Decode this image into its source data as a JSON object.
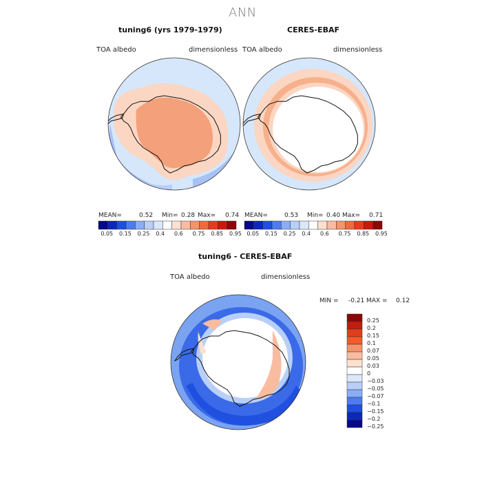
{
  "page_title": "ANN",
  "panels": [
    {
      "title": "tuning6 (yrs 1979-1979)",
      "variable": "TOA albedo",
      "units": "dimensionless",
      "mean_label": "MEAN=",
      "mean": "0.52",
      "min_label": "Min=",
      "min": "0.28",
      "max_label": "Max=",
      "max": "0.74"
    },
    {
      "title": "CERES-EBAF",
      "variable": "TOA albedo",
      "units": "dimensionless",
      "mean_label": "MEAN=",
      "mean": "0.53",
      "min_label": "Min=",
      "min": "0.40",
      "max_label": "Max=",
      "max": "0.71"
    }
  ],
  "difference": {
    "title": "tuning6 - CERES-EBAF",
    "variable": "TOA albedo",
    "units": "dimensionless",
    "min_label": "MIN =",
    "min": "-0.21",
    "max_label": "MAX =",
    "max": "0.12"
  },
  "colorbar_top": {
    "labels": [
      "0.05",
      "0.15",
      "0.25",
      "0.4",
      "0.6",
      "0.75",
      "0.85",
      "0.95"
    ],
    "colors": [
      "#08088a",
      "#0c28b8",
      "#1f4fe0",
      "#4d7cf0",
      "#8aaef5",
      "#b8cff8",
      "#dbe7fb",
      "#ffffff",
      "#fde0d0",
      "#f9bca0",
      "#f4946a",
      "#ef6a3c",
      "#e23e1c",
      "#c41c0c",
      "#8a0808"
    ]
  },
  "colorbar_diff": {
    "labels": [
      "0.25",
      "0.2",
      "0.15",
      "0.1",
      "0.07",
      "0.05",
      "0.03",
      "0",
      "−0.03",
      "−0.05",
      "−0.07",
      "−0.1",
      "−0.15",
      "−0.2",
      "−0.25"
    ],
    "colors": [
      "#8a0808",
      "#c41c0c",
      "#e23e1c",
      "#f45a2a",
      "#f4946a",
      "#f9bca0",
      "#fde0d0",
      "#ffffff",
      "#dbe7fb",
      "#b8cff8",
      "#8aaef5",
      "#4d7cf0",
      "#1f4fe0",
      "#0c28b8",
      "#08088a"
    ]
  },
  "map_colors": {
    "ocean_light": "#d6e7fb",
    "ocean_mid": "#b8cff8",
    "ocean_blue": "#a6c2f6",
    "salmon_light": "#fbd6c2",
    "salmon": "#f7b08c",
    "orange_mid": "#f4a07a",
    "diff_blue_dark": "#2050e0",
    "diff_blue": "#3a6ae8",
    "diff_blue_light": "#7aa3f2",
    "coast": "#111111"
  }
}
